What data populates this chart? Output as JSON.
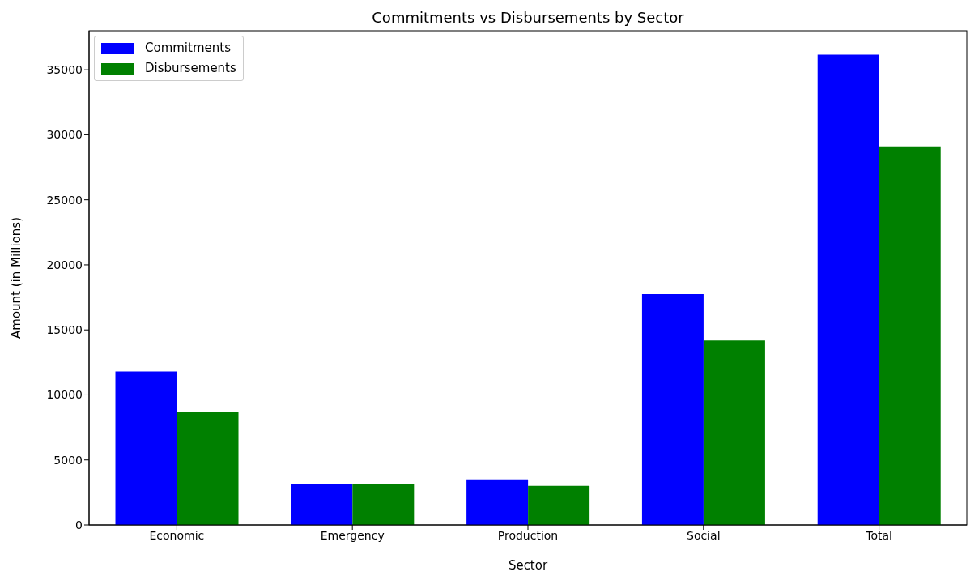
{
  "chart_data": {
    "type": "bar",
    "title": "Commitments vs Disbursements by Sector",
    "xlabel": "Sector",
    "ylabel": "Amount (in Millions)",
    "categories": [
      "Economic",
      "Emergency",
      "Production",
      "Social",
      "Total"
    ],
    "series": [
      {
        "name": "Commitments",
        "color": "#0000ff",
        "values": [
          11800,
          3150,
          3500,
          17750,
          36170
        ]
      },
      {
        "name": "Disbursements",
        "color": "#008000",
        "values": [
          8720,
          3130,
          3010,
          14180,
          29100
        ]
      }
    ],
    "ylim": [
      0,
      38000
    ],
    "yticks": [
      0,
      5000,
      10000,
      15000,
      20000,
      25000,
      30000,
      35000
    ],
    "grid": false,
    "legend": "top left"
  }
}
